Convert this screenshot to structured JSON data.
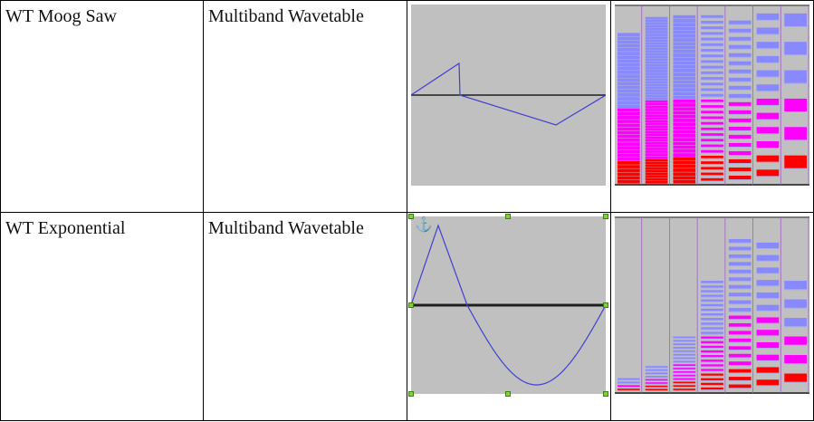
{
  "rows": [
    {
      "name": "WT Moog Saw",
      "type": "Multiband Wavetable",
      "waveform": "moog-saw",
      "selected": false,
      "bands": [
        {
          "level": 0.85,
          "lines": 40
        },
        {
          "level": 0.94,
          "lines": 60
        },
        {
          "level": 0.95,
          "lines": 44
        },
        {
          "level": 0.95,
          "lines": 30
        },
        {
          "level": 0.92,
          "lines": 20
        },
        {
          "level": 0.96,
          "lines": 12
        },
        {
          "level": 0.96,
          "lines": 6
        }
      ]
    },
    {
      "name": "WT Exponential",
      "type": "Multiband Wavetable",
      "waveform": "exponential",
      "selected": true,
      "bands": [
        {
          "level": 0.08,
          "lines": 4
        },
        {
          "level": 0.15,
          "lines": 8
        },
        {
          "level": 0.32,
          "lines": 16
        },
        {
          "level": 0.64,
          "lines": 24
        },
        {
          "level": 0.88,
          "lines": 20
        },
        {
          "level": 0.86,
          "lines": 12
        },
        {
          "level": 0.64,
          "lines": 6
        }
      ]
    }
  ],
  "colors": {
    "waveform_line": "#4040d0",
    "zero_line": "#000000",
    "image_background": "#c0c0c0",
    "spectrum_low": "#ff0000",
    "spectrum_mid": "#ff00ff",
    "spectrum_high": "#8888ff",
    "selection_handle": "#7fd23a"
  },
  "icons": {
    "anchor": "anchor-icon"
  }
}
